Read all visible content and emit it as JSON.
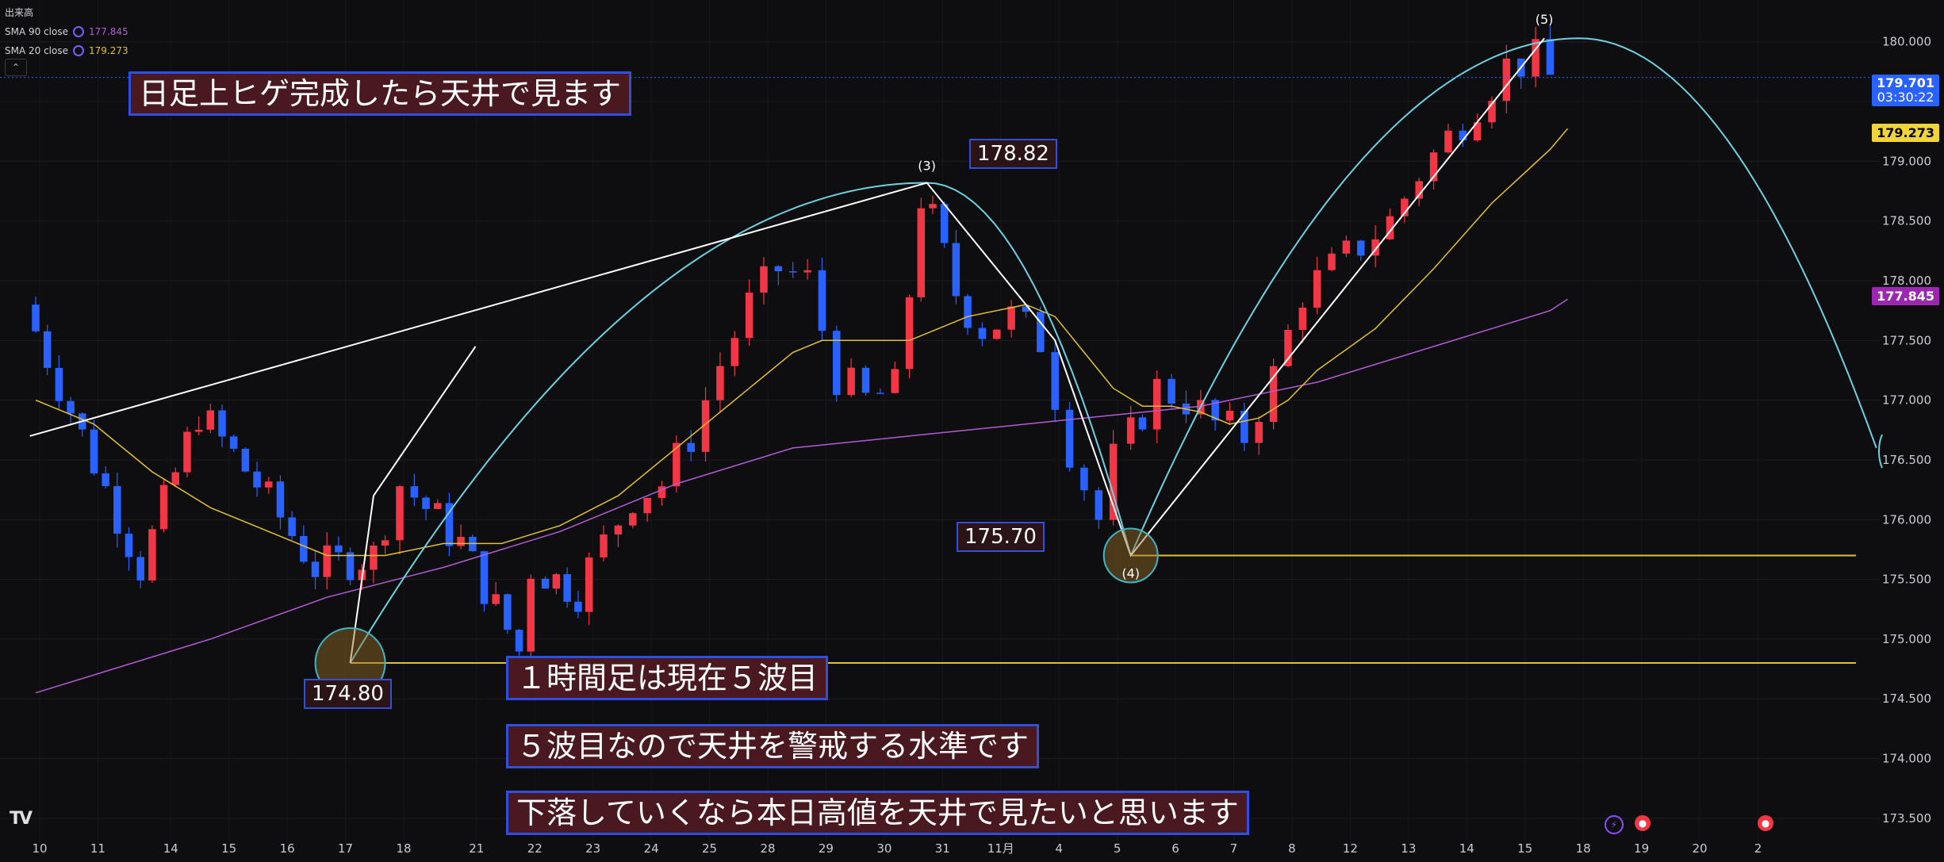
{
  "legend": {
    "volume_label": "出来高",
    "sma90": {
      "label": "SMA 90 close",
      "value": "177.845",
      "color": "#b35bd6"
    },
    "sma20": {
      "label": "SMA 20 close",
      "value": "179.273",
      "color": "#e3c231"
    },
    "collapse_icon": "chevron-up-icon"
  },
  "notes": {
    "top": "日足上ヒゲ完成したら天井で見ます",
    "wave5": "１時間足は現在５波目",
    "caution": "５波目なので天井を警戒する水準です",
    "falling": "下落していくなら本日高値を天井で見たいと思います"
  },
  "price_labels": {
    "high3": "178.82",
    "low4": "175.70",
    "low_start": "174.80"
  },
  "wave_labels": {
    "w3": "(3)",
    "w4": "(4)",
    "w5": "(5)"
  },
  "price_tags": {
    "last": {
      "price": "179.701",
      "timer": "03:30:22",
      "bg": "#2962ff"
    },
    "sma20": {
      "value": "179.273",
      "bg": "#f0d43a"
    },
    "sma90": {
      "value": "177.845",
      "bg": "#9c27b0"
    }
  },
  "chart_data": {
    "type": "candlestick",
    "y_range": [
      173.3,
      180.35
    ],
    "y_ticks": [
      "180.000",
      "179.500",
      "179.000",
      "178.500",
      "178.000",
      "177.500",
      "177.000",
      "176.500",
      "176.000",
      "175.500",
      "175.000",
      "174.500",
      "174.000",
      "173.500"
    ],
    "x_ticks": [
      "10",
      "11",
      "14",
      "15",
      "16",
      "17",
      "18",
      "21",
      "22",
      "23",
      "24",
      "25",
      "28",
      "29",
      "30",
      "31",
      "11月",
      "4",
      "5",
      "6",
      "7",
      "8",
      "12",
      "13",
      "14",
      "15",
      "18",
      "19",
      "20",
      "2"
    ],
    "x_tick_dates": [
      10,
      11,
      14,
      15,
      16,
      17,
      18,
      21,
      22,
      23,
      24,
      25,
      28,
      29,
      30,
      31,
      "11月",
      4,
      5,
      6,
      7,
      8,
      12,
      13,
      14,
      15,
      18,
      19,
      20,
      2
    ],
    "up_color": "#f23645",
    "down_color": "#2962ff",
    "candle_path": [
      [
        0,
        177.8
      ],
      [
        4,
        175.6
      ],
      [
        6,
        176.9
      ],
      [
        8,
        176.3
      ],
      [
        10,
        175.6
      ],
      [
        12,
        175.7
      ],
      [
        13,
        176.3
      ],
      [
        15,
        175.8
      ],
      [
        17,
        174.9
      ],
      [
        17.5,
        175.6
      ],
      [
        19,
        175.4
      ],
      [
        20,
        175.8
      ],
      [
        21,
        176.2
      ],
      [
        22,
        176.3
      ],
      [
        23,
        176.7
      ],
      [
        24,
        177.3
      ],
      [
        25,
        177.8
      ],
      [
        26,
        178.1
      ],
      [
        27,
        178.0
      ],
      [
        28,
        177.2
      ],
      [
        29,
        177.0
      ],
      [
        30,
        177.1
      ],
      [
        30.8,
        178.7
      ],
      [
        31.2,
        178.5
      ],
      [
        32,
        177.9
      ],
      [
        33,
        177.6
      ],
      [
        34,
        177.7
      ],
      [
        35,
        177.5
      ],
      [
        36,
        176.6
      ],
      [
        37,
        176.0
      ],
      [
        37.6,
        176.5
      ],
      [
        38,
        176.7
      ],
      [
        39,
        177.1
      ],
      [
        40,
        177.0
      ],
      [
        41,
        176.8
      ],
      [
        42,
        176.7
      ],
      [
        43,
        177.2
      ],
      [
        44,
        177.9
      ],
      [
        45,
        178.1
      ],
      [
        46,
        178.3
      ],
      [
        47,
        178.5
      ],
      [
        48,
        178.9
      ],
      [
        49,
        179.2
      ],
      [
        50,
        179.5
      ],
      [
        51,
        179.8
      ],
      [
        52,
        179.85
      ],
      [
        52.6,
        179.7
      ]
    ],
    "sma20_points": [
      [
        0,
        177.0
      ],
      [
        2,
        176.8
      ],
      [
        4,
        176.4
      ],
      [
        6,
        176.1
      ],
      [
        8,
        175.9
      ],
      [
        10,
        175.7
      ],
      [
        12,
        175.7
      ],
      [
        14,
        175.8
      ],
      [
        16,
        175.8
      ],
      [
        18,
        175.95
      ],
      [
        20,
        176.2
      ],
      [
        22,
        176.6
      ],
      [
        24,
        177.0
      ],
      [
        26,
        177.4
      ],
      [
        27,
        177.5
      ],
      [
        29,
        177.5
      ],
      [
        30,
        177.5
      ],
      [
        31,
        177.6
      ],
      [
        32,
        177.7
      ],
      [
        34,
        177.8
      ],
      [
        35,
        177.7
      ],
      [
        36,
        177.4
      ],
      [
        37,
        177.1
      ],
      [
        38,
        176.95
      ],
      [
        39,
        176.95
      ],
      [
        40,
        176.9
      ],
      [
        41,
        176.8
      ],
      [
        42,
        176.85
      ],
      [
        43,
        177.0
      ],
      [
        44,
        177.25
      ],
      [
        46,
        177.6
      ],
      [
        48,
        178.1
      ],
      [
        50,
        178.65
      ],
      [
        52,
        179.1
      ],
      [
        52.6,
        179.273
      ]
    ],
    "sma90_points": [
      [
        0,
        174.55
      ],
      [
        6,
        175.0
      ],
      [
        10,
        175.35
      ],
      [
        14,
        175.6
      ],
      [
        18,
        175.9
      ],
      [
        22,
        176.3
      ],
      [
        26,
        176.6
      ],
      [
        30,
        176.7
      ],
      [
        34,
        176.8
      ],
      [
        38,
        176.9
      ],
      [
        40,
        176.95
      ],
      [
        44,
        177.15
      ],
      [
        48,
        177.45
      ],
      [
        52,
        177.75
      ],
      [
        52.6,
        177.845
      ]
    ],
    "wave_lines": [
      [
        [
          -0.2,
          176.7
        ],
        [
          30.6,
          178.82
        ],
        [
          35.0,
          177.5
        ],
        [
          37.6,
          175.7
        ],
        [
          51.8,
          180.03
        ]
      ]
    ],
    "wave_points": {
      "start": {
        "x": 10.8,
        "y": 174.8
      },
      "w3": {
        "x": 30.6,
        "y": 178.82
      },
      "w4": {
        "x": 37.6,
        "y": 175.7
      },
      "w5": {
        "x": 51.8,
        "y": 180.03
      }
    },
    "support_lines": [
      {
        "price": 174.8,
        "from": 10.8,
        "to": 62.5
      },
      {
        "price": 175.7,
        "from": 37.6,
        "to": 62.5
      }
    ],
    "current_price": 179.701
  }
}
